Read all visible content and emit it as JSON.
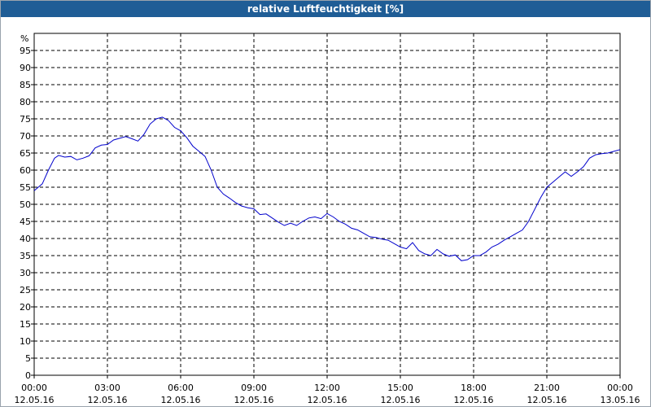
{
  "window": {
    "title": "relative Luftfeuchtigkeit [%]"
  },
  "chart_data": {
    "type": "line",
    "title": "relative Luftfeuchtigkeit [%]",
    "ylabel": "%",
    "ylim": [
      0,
      100
    ],
    "yticks": [
      0,
      5,
      10,
      15,
      20,
      25,
      30,
      35,
      40,
      45,
      50,
      55,
      60,
      65,
      70,
      75,
      80,
      85,
      90,
      95
    ],
    "xlim": [
      "12.05.16 00:00",
      "13.05.16 00:00"
    ],
    "xticks": [
      {
        "time": "00:00",
        "date": "12.05.16"
      },
      {
        "time": "03:00",
        "date": "12.05.16"
      },
      {
        "time": "06:00",
        "date": "12.05.16"
      },
      {
        "time": "09:00",
        "date": "12.05.16"
      },
      {
        "time": "12:00",
        "date": "12.05.16"
      },
      {
        "time": "15:00",
        "date": "12.05.16"
      },
      {
        "time": "18:00",
        "date": "12.05.16"
      },
      {
        "time": "21:00",
        "date": "12.05.16"
      },
      {
        "time": "00:00",
        "date": "13.05.16"
      }
    ],
    "grid": true,
    "line_color": "#0000cc",
    "series": [
      {
        "x": [
          "12.05.16 00:00",
          "12.05.16 00:20",
          "12.05.16 00:35",
          "12.05.16 00:50",
          "12.05.16 01:00",
          "12.05.16 01:15",
          "12.05.16 01:30",
          "12.05.16 01:45",
          "12.05.16 02:00",
          "12.05.16 02:15",
          "12.05.16 02:30",
          "12.05.16 02:45",
          "12.05.16 03:00",
          "12.05.16 03:15",
          "12.05.16 03:30",
          "12.05.16 03:45",
          "12.05.16 04:00",
          "12.05.16 04:15",
          "12.05.16 04:30",
          "12.05.16 04:45",
          "12.05.16 05:00",
          "12.05.16 05:15",
          "12.05.16 05:30",
          "12.05.16 05:45",
          "12.05.16 06:00",
          "12.05.16 06:15",
          "12.05.16 06:30",
          "12.05.16 06:45",
          "12.05.16 07:00",
          "12.05.16 07:15",
          "12.05.16 07:30",
          "12.05.16 07:45",
          "12.05.16 08:00",
          "12.05.16 08:15",
          "12.05.16 08:30",
          "12.05.16 08:45",
          "12.05.16 09:00",
          "12.05.16 09:15",
          "12.05.16 09:30",
          "12.05.16 09:45",
          "12.05.16 10:00",
          "12.05.16 10:15",
          "12.05.16 10:30",
          "12.05.16 10:45",
          "12.05.16 11:00",
          "12.05.16 11:15",
          "12.05.16 11:30",
          "12.05.16 11:45",
          "12.05.16 12:00",
          "12.05.16 12:15",
          "12.05.16 12:30",
          "12.05.16 12:45",
          "12.05.16 13:00",
          "12.05.16 13:15",
          "12.05.16 13:30",
          "12.05.16 13:45",
          "12.05.16 14:00",
          "12.05.16 14:15",
          "12.05.16 14:30",
          "12.05.16 14:45",
          "12.05.16 15:00",
          "12.05.16 15:15",
          "12.05.16 15:30",
          "12.05.16 15:45",
          "12.05.16 16:00",
          "12.05.16 16:15",
          "12.05.16 16:30",
          "12.05.16 16:45",
          "12.05.16 17:00",
          "12.05.16 17:15",
          "12.05.16 17:30",
          "12.05.16 17:45",
          "12.05.16 18:00",
          "12.05.16 18:15",
          "12.05.16 18:30",
          "12.05.16 18:45",
          "12.05.16 19:00",
          "12.05.16 19:15",
          "12.05.16 19:30",
          "12.05.16 19:45",
          "12.05.16 20:00",
          "12.05.16 20:15",
          "12.05.16 20:30",
          "12.05.16 20:45",
          "12.05.16 21:00",
          "12.05.16 21:15",
          "12.05.16 21:30",
          "12.05.16 21:45",
          "12.05.16 22:00",
          "12.05.16 22:15",
          "12.05.16 22:30",
          "12.05.16 22:45",
          "12.05.16 23:00",
          "12.05.16 23:15",
          "12.05.16 23:30",
          "12.05.16 23:45",
          "13.05.16 00:00"
        ],
        "values": [
          54,
          56,
          60,
          63.5,
          64.3,
          63.8,
          64,
          63,
          63.5,
          64.2,
          66.5,
          67.3,
          67.5,
          68.8,
          69.3,
          69.8,
          69.2,
          68.5,
          70.5,
          73.5,
          75,
          75.5,
          74.5,
          72.5,
          71.5,
          69.5,
          67,
          65.5,
          64,
          60,
          55,
          53,
          51.8,
          50.5,
          49.5,
          49,
          48.7,
          47,
          47.2,
          46,
          44.8,
          43.8,
          44.5,
          43.8,
          45,
          46,
          46.3,
          45.8,
          47.3,
          46.3,
          45,
          44.2,
          43,
          42.5,
          41.5,
          40.5,
          40.3,
          39.8,
          39.5,
          38.5,
          37.5,
          37,
          38.8,
          36.5,
          35.5,
          35,
          36.8,
          35.5,
          34.8,
          35.2,
          33.5,
          33.8,
          35,
          35,
          36,
          37.5,
          38.3,
          39.5,
          40.5,
          41.5,
          42.5,
          45,
          48.5,
          52,
          55,
          56.5,
          58,
          59.5,
          58.2,
          59.5,
          61,
          63.5,
          64.5,
          64.8,
          65,
          65.5,
          66
        ]
      }
    ]
  }
}
